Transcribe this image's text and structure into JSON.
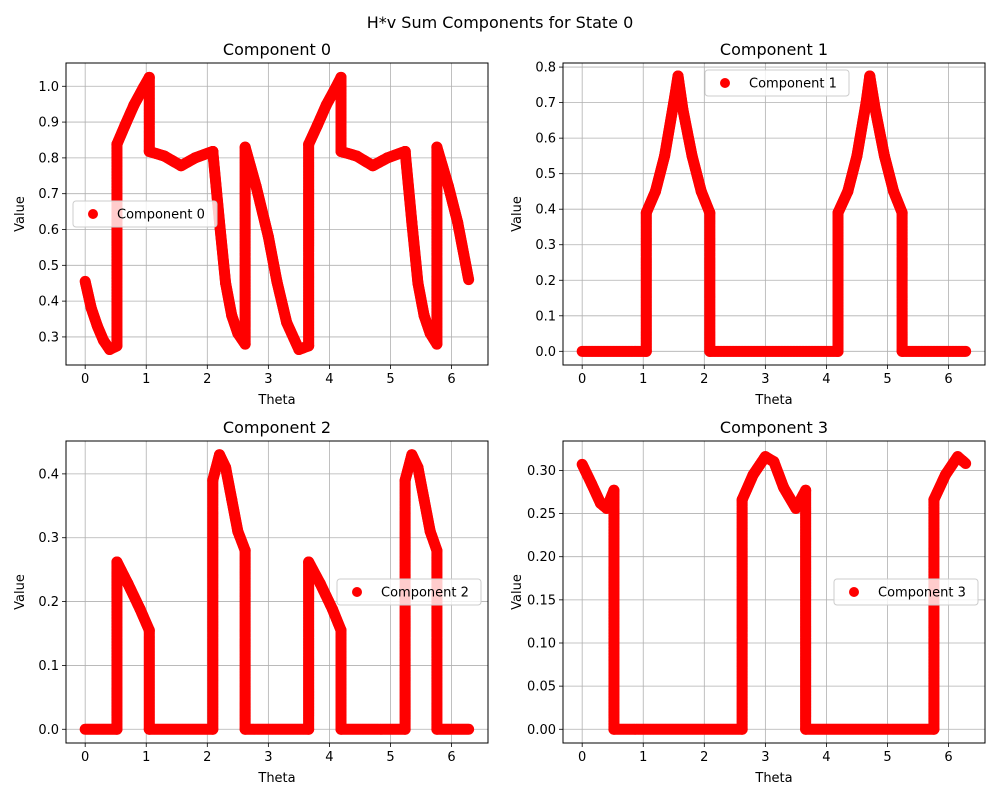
{
  "figure": {
    "suptitle": "H*v Sum Components for State 0",
    "marker_color": "#ff0000"
  },
  "chart_data": [
    {
      "type": "scatter",
      "title": "Component 0",
      "xlabel": "Theta",
      "ylabel": "Value",
      "xlim": [
        -0.314,
        6.597
      ],
      "ylim": [
        0.2216,
        1.065
      ],
      "xticks": [
        0,
        1,
        2,
        3,
        4,
        5,
        6
      ],
      "yticks": [
        0.3,
        0.4,
        0.5,
        0.6,
        0.7,
        0.8,
        0.9,
        1.0
      ],
      "ytick_labels": [
        "0.3",
        "0.4",
        "0.5",
        "0.6",
        "0.7",
        "0.8",
        "0.9",
        "1.0"
      ],
      "grid": true,
      "legend": {
        "placement": "center-left",
        "entries": [
          "Component 0"
        ]
      },
      "series": [
        {
          "name": "Component 0",
          "color": "#ff0000",
          "points": [
            [
              0.0,
              0.455
            ],
            [
              0.1,
              0.38
            ],
            [
              0.2,
              0.33
            ],
            [
              0.3,
              0.29
            ],
            [
              0.4,
              0.265
            ],
            [
              0.52,
              0.275
            ],
            [
              0.52,
              0.838
            ],
            [
              0.65,
              0.89
            ],
            [
              0.8,
              0.948
            ],
            [
              0.95,
              0.995
            ],
            [
              1.05,
              1.025
            ],
            [
              1.05,
              0.818
            ],
            [
              1.3,
              0.805
            ],
            [
              1.57,
              0.778
            ],
            [
              1.8,
              0.8
            ],
            [
              2.09,
              0.818
            ],
            [
              2.09,
              0.818
            ],
            [
              2.2,
              0.62
            ],
            [
              2.3,
              0.45
            ],
            [
              2.4,
              0.36
            ],
            [
              2.5,
              0.31
            ],
            [
              2.62,
              0.28
            ],
            [
              2.62,
              0.83
            ],
            [
              2.8,
              0.72
            ],
            [
              3.0,
              0.58
            ],
            [
              3.14,
              0.455
            ],
            [
              3.3,
              0.34
            ],
            [
              3.5,
              0.265
            ],
            [
              3.66,
              0.275
            ],
            [
              3.66,
              0.838
            ],
            [
              3.8,
              0.89
            ],
            [
              3.95,
              0.948
            ],
            [
              4.1,
              0.995
            ],
            [
              4.19,
              1.025
            ],
            [
              4.19,
              0.818
            ],
            [
              4.45,
              0.805
            ],
            [
              4.71,
              0.778
            ],
            [
              4.95,
              0.8
            ],
            [
              5.24,
              0.818
            ],
            [
              5.24,
              0.818
            ],
            [
              5.35,
              0.62
            ],
            [
              5.45,
              0.45
            ],
            [
              5.55,
              0.36
            ],
            [
              5.65,
              0.31
            ],
            [
              5.76,
              0.28
            ],
            [
              5.76,
              0.83
            ],
            [
              5.95,
              0.72
            ],
            [
              6.1,
              0.62
            ],
            [
              6.28,
              0.46
            ]
          ]
        }
      ]
    },
    {
      "type": "scatter",
      "title": "Component 1",
      "xlabel": "Theta",
      "ylabel": "Value",
      "xlim": [
        -0.314,
        6.597
      ],
      "ylim": [
        -0.0385,
        0.8115
      ],
      "xticks": [
        0,
        1,
        2,
        3,
        4,
        5,
        6
      ],
      "yticks": [
        0.0,
        0.1,
        0.2,
        0.3,
        0.4,
        0.5,
        0.6,
        0.7,
        0.8
      ],
      "ytick_labels": [
        "0.0",
        "0.1",
        "0.2",
        "0.3",
        "0.4",
        "0.5",
        "0.6",
        "0.7",
        "0.8"
      ],
      "grid": true,
      "legend": {
        "placement": "upper-center",
        "entries": [
          "Component 1"
        ]
      },
      "series": [
        {
          "name": "Component 1",
          "color": "#ff0000",
          "points": [
            [
              0.0,
              0.0
            ],
            [
              1.05,
              0.0
            ],
            [
              1.05,
              0.39
            ],
            [
              1.2,
              0.45
            ],
            [
              1.35,
              0.55
            ],
            [
              1.5,
              0.7
            ],
            [
              1.57,
              0.775
            ],
            [
              1.65,
              0.68
            ],
            [
              1.8,
              0.55
            ],
            [
              1.95,
              0.45
            ],
            [
              2.09,
              0.39
            ],
            [
              2.09,
              0.0
            ],
            [
              4.19,
              0.0
            ],
            [
              4.19,
              0.39
            ],
            [
              4.35,
              0.45
            ],
            [
              4.5,
              0.55
            ],
            [
              4.65,
              0.7
            ],
            [
              4.71,
              0.775
            ],
            [
              4.8,
              0.68
            ],
            [
              4.95,
              0.55
            ],
            [
              5.1,
              0.45
            ],
            [
              5.24,
              0.39
            ],
            [
              5.24,
              0.0
            ],
            [
              6.28,
              0.0
            ]
          ]
        }
      ]
    },
    {
      "type": "scatter",
      "title": "Component 2",
      "xlabel": "Theta",
      "ylabel": "Value",
      "xlim": [
        -0.314,
        6.597
      ],
      "ylim": [
        -0.0215,
        0.4515
      ],
      "xticks": [
        0,
        1,
        2,
        3,
        4,
        5,
        6
      ],
      "yticks": [
        0.0,
        0.1,
        0.2,
        0.3,
        0.4
      ],
      "ytick_labels": [
        "0.0",
        "0.1",
        "0.2",
        "0.3",
        "0.4"
      ],
      "grid": true,
      "legend": {
        "placement": "center-right",
        "entries": [
          "Component 2"
        ]
      },
      "series": [
        {
          "name": "Component 2",
          "color": "#ff0000",
          "points": [
            [
              0.0,
              0.0
            ],
            [
              0.52,
              0.0
            ],
            [
              0.52,
              0.262
            ],
            [
              0.7,
              0.228
            ],
            [
              0.9,
              0.188
            ],
            [
              1.05,
              0.155
            ],
            [
              1.05,
              0.0
            ],
            [
              2.09,
              0.0
            ],
            [
              2.09,
              0.39
            ],
            [
              2.2,
              0.43
            ],
            [
              2.3,
              0.41
            ],
            [
              2.4,
              0.36
            ],
            [
              2.5,
              0.31
            ],
            [
              2.62,
              0.28
            ],
            [
              2.62,
              0.0
            ],
            [
              3.66,
              0.0
            ],
            [
              3.66,
              0.262
            ],
            [
              3.85,
              0.228
            ],
            [
              4.05,
              0.188
            ],
            [
              4.19,
              0.155
            ],
            [
              4.19,
              0.0
            ],
            [
              5.24,
              0.0
            ],
            [
              5.24,
              0.39
            ],
            [
              5.35,
              0.43
            ],
            [
              5.45,
              0.41
            ],
            [
              5.55,
              0.36
            ],
            [
              5.65,
              0.31
            ],
            [
              5.76,
              0.28
            ],
            [
              5.76,
              0.0
            ],
            [
              6.28,
              0.0
            ]
          ]
        }
      ]
    },
    {
      "type": "scatter",
      "title": "Component 3",
      "xlabel": "Theta",
      "ylabel": "Value",
      "xlim": [
        -0.314,
        6.597
      ],
      "ylim": [
        -0.0159,
        0.3341
      ],
      "xticks": [
        0,
        1,
        2,
        3,
        4,
        5,
        6
      ],
      "yticks": [
        0.0,
        0.05,
        0.1,
        0.15,
        0.2,
        0.25,
        0.3
      ],
      "ytick_labels": [
        "0.00",
        "0.05",
        "0.10",
        "0.15",
        "0.20",
        "0.25",
        "0.30"
      ],
      "grid": true,
      "legend": {
        "placement": "center-right",
        "entries": [
          "Component 3"
        ]
      },
      "series": [
        {
          "name": "Component 3",
          "color": "#ff0000",
          "points": [
            [
              0.0,
              0.307
            ],
            [
              0.15,
              0.285
            ],
            [
              0.3,
              0.262
            ],
            [
              0.4,
              0.256
            ],
            [
              0.52,
              0.277
            ],
            [
              0.52,
              0.0
            ],
            [
              2.62,
              0.0
            ],
            [
              2.62,
              0.266
            ],
            [
              2.8,
              0.295
            ],
            [
              3.0,
              0.316
            ],
            [
              3.14,
              0.31
            ],
            [
              3.3,
              0.28
            ],
            [
              3.5,
              0.256
            ],
            [
              3.66,
              0.277
            ],
            [
              3.66,
              0.0
            ],
            [
              5.76,
              0.0
            ],
            [
              5.76,
              0.266
            ],
            [
              5.95,
              0.295
            ],
            [
              6.15,
              0.316
            ],
            [
              6.28,
              0.308
            ]
          ]
        }
      ]
    }
  ]
}
